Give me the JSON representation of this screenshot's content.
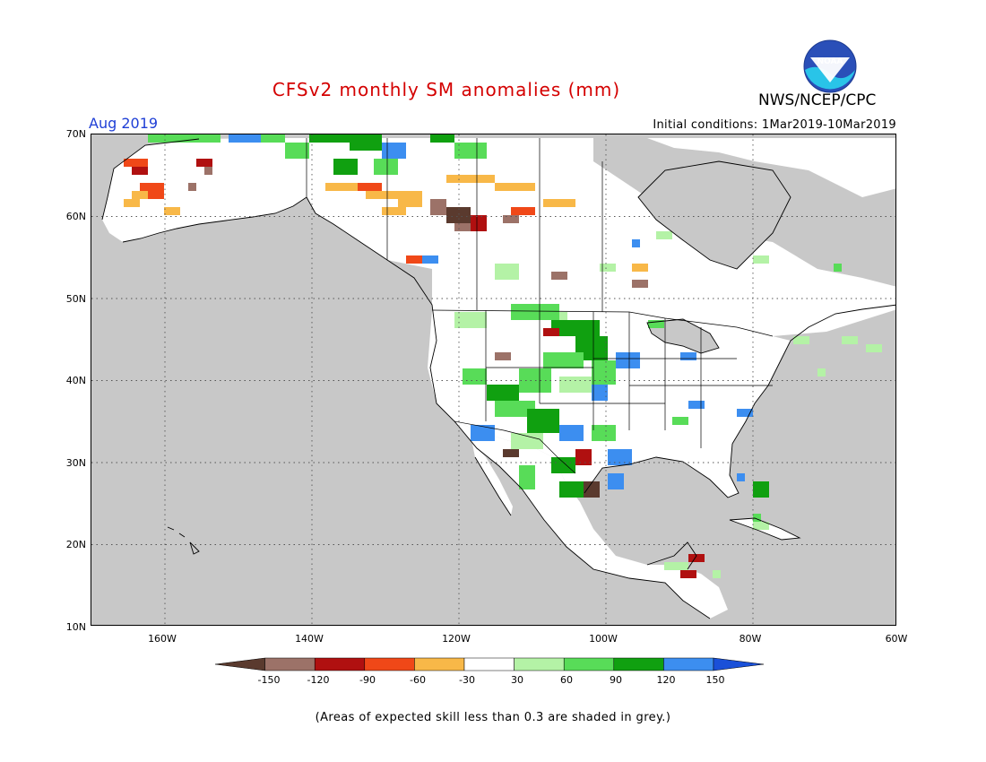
{
  "title": "CFSv2 monthly SM anomalies (mm)",
  "agency": "NWS/NCEP/CPC",
  "logo_text": "NOAA",
  "valid_month": "Aug 2019",
  "initial_conditions": "Initial conditions: 1Mar2019-10Mar2019",
  "footnote": "(Areas of expected skill less than 0.3 are shaded in grey.)",
  "lat_labels": [
    "70N",
    "60N",
    "50N",
    "40N",
    "30N",
    "20N",
    "10N"
  ],
  "lon_labels": [
    "160W",
    "140W",
    "120W",
    "100W",
    "80W",
    "60W"
  ],
  "colorbar": {
    "labels": [
      "-150",
      "-120",
      "-90",
      "-60",
      "-30",
      "30",
      "60",
      "90",
      "120",
      "150"
    ],
    "colors": [
      "#5a3a2e",
      "#9c7268",
      "#b01010",
      "#f04818",
      "#f8b848",
      "#ffffff",
      "#b4f2a6",
      "#58dc58",
      "#10a010",
      "#3c8ef0",
      "#1a50d8"
    ]
  },
  "colors": {
    "ocean_skill_grey": "#c8c8c8",
    "title_red": "#d40000",
    "month_blue": "#1f3fd6"
  }
}
